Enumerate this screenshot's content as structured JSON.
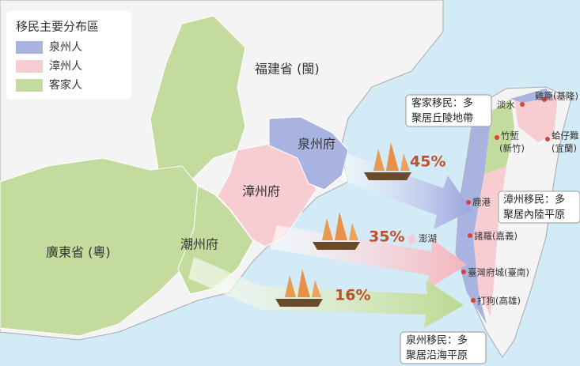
{
  "legend": {
    "title": "移民主要分布區",
    "items": [
      "泉州人",
      "漳州人",
      "客家人"
    ]
  },
  "regions": {
    "fujian": "福建省 (閩)",
    "guangdong": "廣東省 (粵)",
    "quanzhou": "泉州府",
    "zhangzhou": "漳州府",
    "chaozhou": "潮州府",
    "penghu": "澎湖"
  },
  "cities": [
    "淡水",
    "雞籠(基隆)",
    "竹塹",
    "(新竹)",
    "蛤仔難",
    "(宜蘭)",
    "鹿港",
    "諸羅(嘉義)",
    "臺灣府城(臺南)",
    "打狗(高雄)"
  ],
  "callouts": [
    [
      "客家移民：多",
      "聚居丘陵地帶"
    ],
    [
      "漳州移民：多",
      "聚居內陸平原"
    ],
    [
      "泉州移民：多",
      "聚居沿海平原"
    ]
  ],
  "migration": [
    "45%",
    "35%",
    "16%"
  ]
}
